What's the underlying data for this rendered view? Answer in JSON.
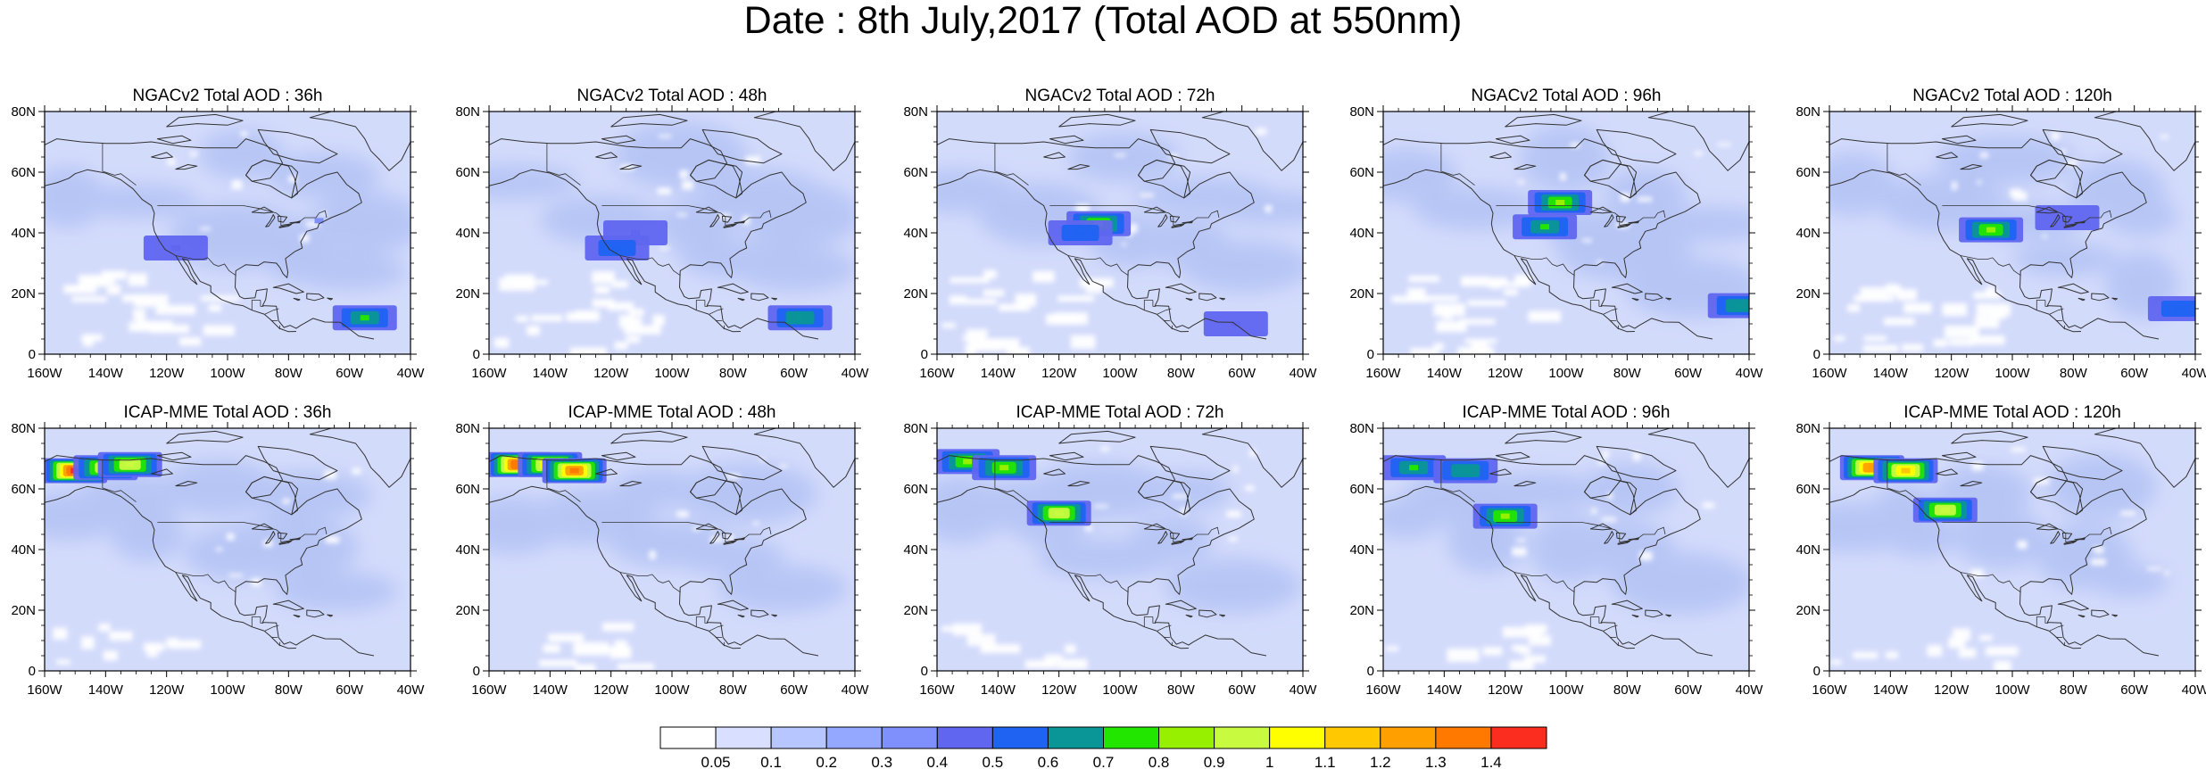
{
  "title": "Date : 8th July,2017 (Total AOD at 550nm)",
  "lat_ticks": [
    "80N",
    "60N",
    "40N",
    "20N",
    "0"
  ],
  "lon_ticks": [
    "160W",
    "140W",
    "120W",
    "100W",
    "80W",
    "60W",
    "40W"
  ],
  "rows": [
    {
      "model": "NGACv2",
      "panels": [
        {
          "title": "NGACv2 Total AOD : 36h",
          "plumes": [
            {
              "lon": -55,
              "lat": 12,
              "level": 0.7
            },
            {
              "lon": -117,
              "lat": 35,
              "level": 0.4
            },
            {
              "lon": -70,
              "lat": 44,
              "level": 0.3
            }
          ]
        },
        {
          "title": "NGACv2 Total AOD : 48h",
          "plumes": [
            {
              "lon": -58,
              "lat": 12,
              "level": 0.65
            },
            {
              "lon": -112,
              "lat": 40,
              "level": 0.4
            },
            {
              "lon": -118,
              "lat": 35,
              "level": 0.5
            }
          ]
        },
        {
          "title": "NGACv2 Total AOD : 72h",
          "plumes": [
            {
              "lon": -107,
              "lat": 43,
              "level": 0.85
            },
            {
              "lon": -113,
              "lat": 40,
              "level": 0.5
            },
            {
              "lon": -62,
              "lat": 10,
              "level": 0.45
            }
          ]
        },
        {
          "title": "NGACv2 Total AOD : 96h",
          "plumes": [
            {
              "lon": -102,
              "lat": 50,
              "level": 0.85
            },
            {
              "lon": -107,
              "lat": 42,
              "level": 0.7
            },
            {
              "lon": -43,
              "lat": 16,
              "level": 0.65
            }
          ]
        },
        {
          "title": "NGACv2 Total AOD : 120h",
          "plumes": [
            {
              "lon": -107,
              "lat": 41,
              "level": 0.85
            },
            {
              "lon": -45,
              "lat": 15,
              "level": 0.5
            },
            {
              "lon": -82,
              "lat": 45,
              "level": 0.45
            }
          ]
        }
      ]
    },
    {
      "model": "ICAP-MME",
      "panels": [
        {
          "title": "ICAP-MME Total AOD : 36h",
          "plumes": [
            {
              "lon": -150,
              "lat": 66,
              "level": 1.4
            },
            {
              "lon": -140,
              "lat": 67,
              "level": 1.0
            },
            {
              "lon": -132,
              "lat": 68,
              "level": 0.9
            }
          ]
        },
        {
          "title": "ICAP-MME Total AOD : 48h",
          "plumes": [
            {
              "lon": -150,
              "lat": 68,
              "level": 1.35
            },
            {
              "lon": -140,
              "lat": 68,
              "level": 1.1
            },
            {
              "lon": -132,
              "lat": 66,
              "level": 1.3
            }
          ]
        },
        {
          "title": "ICAP-MME Total AOD : 72h",
          "plumes": [
            {
              "lon": -150,
              "lat": 69,
              "level": 0.8
            },
            {
              "lon": -138,
              "lat": 67,
              "level": 0.8
            },
            {
              "lon": -120,
              "lat": 52,
              "level": 0.9
            }
          ]
        },
        {
          "title": "ICAP-MME Total AOD : 96h",
          "plumes": [
            {
              "lon": -150,
              "lat": 67,
              "level": 0.7
            },
            {
              "lon": -133,
              "lat": 66,
              "level": 0.65
            },
            {
              "lon": -120,
              "lat": 51,
              "level": 0.8
            }
          ]
        },
        {
          "title": "ICAP-MME Total AOD : 120h",
          "plumes": [
            {
              "lon": -146,
              "lat": 67,
              "level": 1.2
            },
            {
              "lon": -135,
              "lat": 66,
              "level": 1.1
            },
            {
              "lon": -122,
              "lat": 53,
              "level": 0.9
            }
          ]
        }
      ]
    }
  ],
  "colorbar": {
    "labels": [
      "0.05",
      "0.1",
      "0.2",
      "0.3",
      "0.4",
      "0.5",
      "0.6",
      "0.7",
      "0.8",
      "0.9",
      "1",
      "1.1",
      "1.2",
      "1.3",
      "1.4"
    ],
    "colors": [
      "#ffffff",
      "#d9e0ff",
      "#b8c6ff",
      "#94a8ff",
      "#7f8ffb",
      "#6066f0",
      "#1f63f2",
      "#0a9696",
      "#22e600",
      "#96f000",
      "#c8fa40",
      "#ffff00",
      "#ffc800",
      "#ffa000",
      "#ff7800",
      "#fa2d1e"
    ]
  },
  "map": {
    "ocean_color": "#d3dbfb",
    "haze_color": "#b3c2f5",
    "clear_color": "#ffffff",
    "coast_color": "#333333"
  }
}
